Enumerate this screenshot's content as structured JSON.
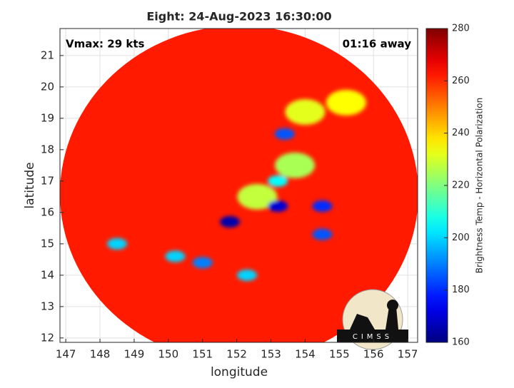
{
  "chart_data": {
    "type": "heatmap",
    "title": "Eight: 24-Aug-2023 16:30:00",
    "x_label": "longitude",
    "y_label": "latitude",
    "annotations": [
      "Vmax: 29 kts",
      "01:16 away"
    ],
    "logo": "CIMSS",
    "xlim": [
      146.83,
      157.29
    ],
    "xticks": [
      147,
      148,
      149,
      150,
      151,
      152,
      153,
      154,
      155,
      156,
      157
    ],
    "ylim": [
      11.86,
      21.86
    ],
    "yticks": [
      12,
      13,
      14,
      15,
      16,
      17,
      18,
      19,
      20,
      21
    ],
    "grid": true,
    "colorbar": {
      "label": "Brightness Temp - Horizontal Polarization",
      "lim": [
        160,
        280
      ],
      "ticks": [
        160,
        180,
        200,
        220,
        240,
        260,
        280
      ],
      "colormap": "jet"
    },
    "disk_value": 262,
    "cells": {
      "lon": [
        152.6,
        153.7,
        153.2,
        155.2,
        154.0,
        148.5,
        150.2,
        152.3,
        151.0,
        154.5,
        154.5,
        153.4,
        153.2,
        151.8
      ],
      "lat": [
        16.5,
        17.5,
        17.0,
        19.5,
        19.2,
        15.0,
        14.6,
        14.0,
        14.4,
        15.3,
        16.2,
        18.5,
        16.2,
        15.7
      ],
      "values": [
        228,
        225,
        205,
        235,
        232,
        200,
        200,
        200,
        190,
        185,
        180,
        185,
        170,
        165
      ]
    }
  }
}
